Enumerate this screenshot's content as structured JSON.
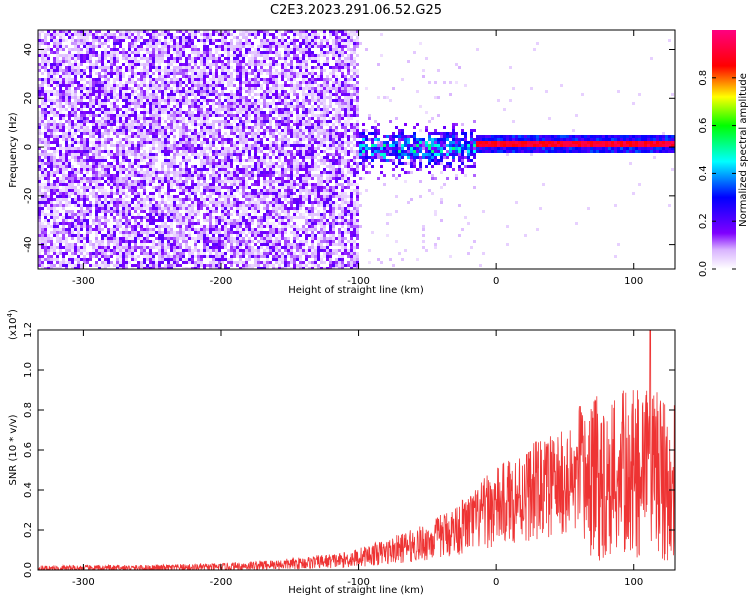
{
  "title": "C2E3.2023.291.06.52.G25",
  "chart_data": [
    {
      "type": "heatmap",
      "xlabel": "Height of straight line (km)",
      "ylabel": "Frequency (Hz)",
      "xlim": [
        -333,
        130
      ],
      "ylim": [
        -50,
        48
      ],
      "xticks": [
        -300,
        -200,
        -100,
        0,
        100
      ],
      "yticks": [
        -40,
        -20,
        0,
        20,
        40
      ],
      "colorbar": {
        "label": "Normalized spectral amplitude",
        "range": [
          0.0,
          1.0
        ],
        "ticks": [
          0.0,
          0.2,
          0.4,
          0.6,
          0.8
        ],
        "colors": [
          "#ffffff",
          "#7f00ff",
          "#0000ff",
          "#00ffff",
          "#00ff00",
          "#ffff00",
          "#ff0000",
          "#ff00ff"
        ]
      },
      "features": {
        "noise_region_x": [
          -333,
          -100
        ],
        "noise_amplitude": 0.12,
        "transition_region_x": [
          -100,
          -15
        ],
        "transition_amplitude": 0.35,
        "tone_region_x": [
          -15,
          130
        ],
        "tone_frequency_hz": 2,
        "tone_amplitude": 0.95
      }
    },
    {
      "type": "line",
      "xlabel": "Height of straight line (km)",
      "ylabel": "SNR (10 * v/v)",
      "scale_label": "(x10",
      "scale_exp": "4",
      "scale_close": ")",
      "xlim": [
        -333,
        130
      ],
      "ylim": [
        0.0,
        1.2
      ],
      "xticks": [
        -300,
        -200,
        -100,
        0,
        100
      ],
      "yticks": [
        0.0,
        0.2,
        0.4,
        0.6,
        0.8,
        1.0,
        1.2
      ],
      "color": "#ee3333",
      "series_trend": {
        "x": [
          -333,
          -250,
          -200,
          -150,
          -110,
          -80,
          -50,
          -30,
          -15,
          -5,
          5,
          20,
          40,
          60,
          80,
          100,
          115,
          130
        ],
        "y": [
          0.008,
          0.01,
          0.015,
          0.03,
          0.05,
          0.09,
          0.14,
          0.2,
          0.25,
          0.3,
          0.33,
          0.38,
          0.42,
          0.44,
          0.47,
          0.48,
          0.47,
          0.47
        ]
      }
    }
  ]
}
